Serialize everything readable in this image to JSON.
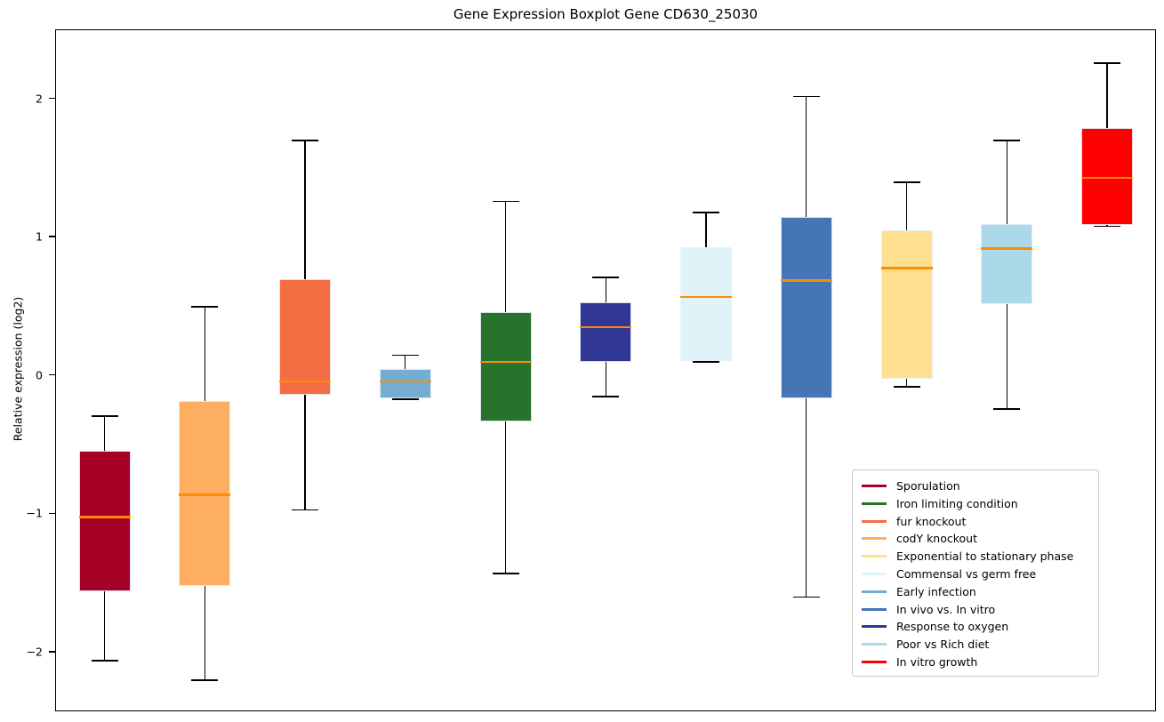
{
  "chart_data": {
    "type": "boxplot",
    "title": "Gene Expression Boxplot Gene CD630_25030",
    "ylabel": "Relative expression (log2)",
    "ylim": [
      -2.45,
      2.48
    ],
    "yticks": [
      2,
      1,
      0,
      -1,
      -2
    ],
    "grid": false,
    "legend_position": "lower right",
    "median_color": "#ff8c00",
    "boxes": [
      {
        "name": "Sporulation",
        "color": "#a50026",
        "whisker_low": -2.06,
        "q1": -1.56,
        "median": -1.02,
        "q3": -0.54,
        "whisker_high": -0.29
      },
      {
        "name": "codY knockout",
        "color": "#fdae61",
        "whisker_low": -2.2,
        "q1": -1.52,
        "median": -0.86,
        "q3": -0.18,
        "whisker_high": 0.5
      },
      {
        "name": "fur knockout",
        "color": "#f46d43",
        "whisker_low": -0.97,
        "q1": -0.14,
        "median": -0.04,
        "q3": 0.7,
        "whisker_high": 1.7
      },
      {
        "name": "Early infection",
        "color": "#74add1",
        "whisker_low": -0.17,
        "q1": -0.16,
        "median": -0.04,
        "q3": 0.05,
        "whisker_high": 0.15
      },
      {
        "name": "Iron limiting condition",
        "color": "#27732d",
        "whisker_low": -1.43,
        "q1": -0.33,
        "median": 0.1,
        "q3": 0.46,
        "whisker_high": 1.26
      },
      {
        "name": "Response to oxygen",
        "color": "#313695",
        "whisker_low": -0.15,
        "q1": 0.1,
        "median": 0.35,
        "q3": 0.53,
        "whisker_high": 0.71
      },
      {
        "name": "Commensal vs germ free",
        "color": "#e0f3f8",
        "whisker_low": 0.1,
        "q1": 0.11,
        "median": 0.57,
        "q3": 0.93,
        "whisker_high": 1.18
      },
      {
        "name": "In vivo vs. In vitro",
        "color": "#4575b4",
        "whisker_low": -1.6,
        "q1": -0.16,
        "median": 0.69,
        "q3": 1.15,
        "whisker_high": 2.02
      },
      {
        "name": "Exponential to stationary phase",
        "color": "#fee090",
        "whisker_low": -0.08,
        "q1": -0.02,
        "median": 0.78,
        "q3": 1.05,
        "whisker_high": 1.4
      },
      {
        "name": "Poor vs Rich diet",
        "color": "#abd9e9",
        "whisker_low": -0.24,
        "q1": 0.52,
        "median": 0.92,
        "q3": 1.1,
        "whisker_high": 1.7
      },
      {
        "name": "In vitro growth",
        "color": "#fe0000",
        "whisker_low": 1.08,
        "q1": 1.09,
        "median": 1.43,
        "q3": 1.79,
        "whisker_high": 2.26
      }
    ],
    "legend_order": [
      "Sporulation",
      "Iron limiting condition",
      "fur knockout",
      "codY knockout",
      "Exponential to stationary phase",
      "Commensal vs germ free",
      "Early infection",
      "In vivo vs. In vitro",
      "Response to oxygen",
      "Poor vs Rich diet",
      "In vitro growth"
    ]
  }
}
